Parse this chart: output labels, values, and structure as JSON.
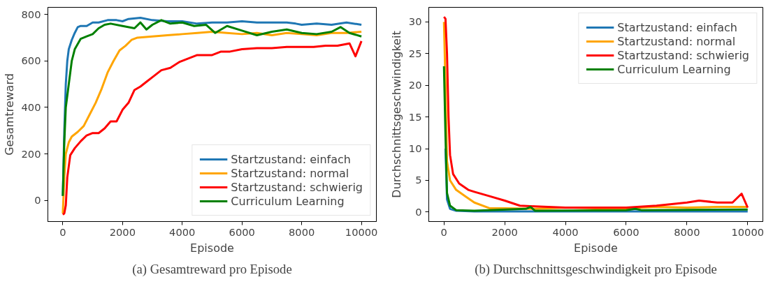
{
  "chart_data": [
    {
      "type": "line",
      "title": "(a) Gesamtreward pro Episode",
      "xlabel": "Episode",
      "ylabel": "Gesamtreward",
      "xlim": [
        -500,
        10500
      ],
      "ylim": [
        -90,
        830
      ],
      "xticks": [
        0,
        2000,
        4000,
        6000,
        8000,
        10000
      ],
      "yticks": [
        0,
        200,
        400,
        600,
        800
      ],
      "grid": false,
      "legend": "bottom right",
      "series": [
        {
          "name": "Startzustand: einfach",
          "color": "#1f77b4",
          "x": [
            0,
            50,
            100,
            150,
            200,
            300,
            400,
            500,
            600,
            800,
            1000,
            1200,
            1500,
            1800,
            2000,
            2200,
            2600,
            3000,
            3500,
            4000,
            4500,
            5000,
            5500,
            6000,
            6500,
            7000,
            7500,
            7800,
            8000,
            8500,
            9000,
            9500,
            10000
          ],
          "values": [
            20,
            300,
            500,
            600,
            650,
            690,
            720,
            745,
            750,
            750,
            765,
            765,
            775,
            775,
            770,
            780,
            785,
            775,
            770,
            770,
            760,
            765,
            765,
            770,
            765,
            765,
            765,
            760,
            755,
            760,
            755,
            765,
            755
          ]
        },
        {
          "name": "Startzustand: normal",
          "color": "#ffa500",
          "x": [
            0,
            50,
            100,
            200,
            300,
            500,
            700,
            900,
            1100,
            1300,
            1500,
            1700,
            1900,
            2100,
            2300,
            2500,
            3000,
            3500,
            4000,
            4500,
            5000,
            5500,
            6000,
            6500,
            7000,
            7500,
            8000,
            8500,
            9000,
            9500,
            10000
          ],
          "values": [
            -55,
            100,
            200,
            250,
            275,
            295,
            320,
            370,
            420,
            480,
            550,
            600,
            645,
            665,
            690,
            700,
            705,
            710,
            715,
            720,
            725,
            720,
            715,
            720,
            710,
            720,
            715,
            710,
            720,
            720,
            725
          ]
        },
        {
          "name": "Startzustand: schwierig",
          "color": "#ff0000",
          "x": [
            0,
            50,
            100,
            150,
            250,
            400,
            600,
            800,
            1000,
            1200,
            1400,
            1600,
            1800,
            2000,
            2200,
            2400,
            2600,
            2800,
            3000,
            3300,
            3600,
            3900,
            4200,
            4500,
            5000,
            5300,
            5600,
            6000,
            6500,
            7000,
            7500,
            8000,
            8400,
            8800,
            9200,
            9600,
            9800,
            10000
          ],
          "values": [
            -60,
            -55,
            -20,
            100,
            195,
            225,
            255,
            280,
            290,
            290,
            310,
            340,
            340,
            390,
            420,
            475,
            490,
            510,
            530,
            560,
            570,
            595,
            610,
            625,
            625,
            640,
            640,
            650,
            655,
            655,
            660,
            660,
            660,
            665,
            665,
            675,
            620,
            685
          ]
        },
        {
          "name": "Curriculum Learning",
          "color": "#008000",
          "x": [
            0,
            50,
            100,
            200,
            300,
            400,
            600,
            800,
            1000,
            1200,
            1400,
            1600,
            2000,
            2400,
            2600,
            2800,
            3000,
            3300,
            3600,
            4000,
            4400,
            4800,
            5100,
            5500,
            6000,
            6500,
            7000,
            7500,
            8000,
            8500,
            9000,
            9300,
            9600,
            10000
          ],
          "values": [
            20,
            250,
            400,
            500,
            600,
            650,
            695,
            705,
            715,
            740,
            755,
            760,
            750,
            740,
            765,
            735,
            755,
            775,
            760,
            765,
            750,
            755,
            720,
            750,
            730,
            710,
            725,
            735,
            720,
            715,
            725,
            745,
            720,
            705
          ]
        }
      ]
    },
    {
      "type": "line",
      "title": "(b) Durchschnittsgeschwindigkeit pro Episode",
      "xlabel": "Episode",
      "ylabel": "Durchschnittsgeschwindigkeit",
      "xlim": [
        -500,
        10500
      ],
      "ylim": [
        -1.5,
        32.3
      ],
      "xticks": [
        0,
        2000,
        4000,
        6000,
        8000,
        10000
      ],
      "yticks": [
        0,
        5,
        10,
        15,
        20,
        25,
        30
      ],
      "grid": false,
      "legend": "top right",
      "series": [
        {
          "name": "Startzustand: einfach",
          "color": "#1f77b4",
          "x": [
            50,
            100,
            200,
            400,
            1000,
            4000,
            10000
          ],
          "values": [
            10,
            2,
            0.5,
            0.2,
            0.1,
            0.1,
            0.1
          ]
        },
        {
          "name": "Startzustand: normal",
          "color": "#ffa500",
          "x": [
            0,
            50,
            100,
            200,
            400,
            700,
            1000,
            1500,
            2000,
            3000,
            4000,
            5000,
            6000,
            7000,
            8000,
            9000,
            10000
          ],
          "values": [
            30,
            20,
            8,
            5,
            3.5,
            2.5,
            1.5,
            0.6,
            0.6,
            0.5,
            0.7,
            0.6,
            0.6,
            0.8,
            0.7,
            0.8,
            0.8
          ]
        },
        {
          "name": "Startzustand: schwierig",
          "color": "#ff0000",
          "x": [
            0,
            50,
            100,
            150,
            200,
            300,
            500,
            800,
            1000,
            1500,
            2000,
            2500,
            3000,
            4000,
            5000,
            6000,
            7000,
            8000,
            8400,
            9000,
            9500,
            9800,
            10000
          ],
          "values": [
            30.8,
            30.5,
            25,
            15,
            9,
            6,
            4.5,
            3.5,
            3.2,
            2.5,
            1.8,
            1.0,
            0.9,
            0.7,
            0.7,
            0.7,
            1.0,
            1.5,
            1.8,
            1.5,
            1.5,
            2.9,
            0.7
          ]
        },
        {
          "name": "Curriculum Learning",
          "color": "#008000",
          "x": [
            0,
            50,
            100,
            200,
            400,
            1000,
            2700,
            2850,
            3000,
            6000,
            6300,
            6500,
            10000
          ],
          "values": [
            23,
            12,
            3,
            1,
            0.3,
            0.2,
            0.5,
            0.8,
            0.2,
            0.3,
            0.5,
            0.3,
            0.4
          ]
        }
      ]
    }
  ]
}
